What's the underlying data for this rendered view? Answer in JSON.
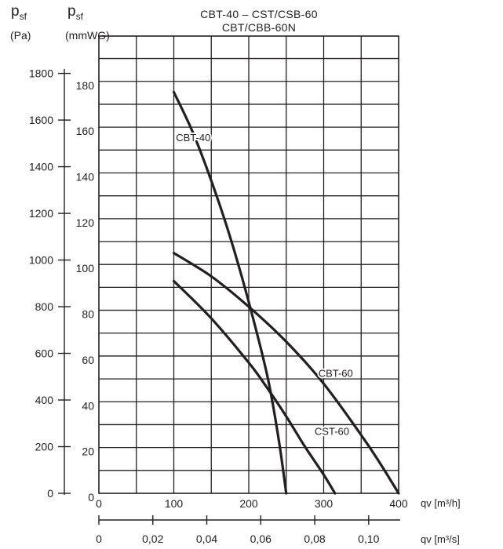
{
  "header": {
    "title_line1": "CBT-40 – CST/CSB-60",
    "title_line2": "CBT/CBB-60N",
    "left_symbol": "p",
    "left_sub": "sf",
    "left_unit": "(Pa)",
    "right_symbol": "p",
    "right_sub": "sf",
    "right_unit": "(mmWG)"
  },
  "chart_data": {
    "type": "line",
    "title": "CBT-40 – CST/CSB-60 CBT/CBB-60N",
    "xlabel": "qv [m³/h]",
    "xlabel2": "qv [m³/s]",
    "ylabel": "psf (Pa)",
    "ylabel2": "psf (mmWG)",
    "xlim": [
      0,
      400
    ],
    "ylim": [
      0,
      1960
    ],
    "ylim_mmwg": [
      0,
      196
    ],
    "grid": true,
    "x_ticks": [
      "0",
      "100",
      "200",
      "300",
      "400"
    ],
    "x2_ticks": [
      "0",
      "0,02",
      "0,04",
      "0,06",
      "0,08",
      "0,10"
    ],
    "y_ticks_pa": [
      "0",
      "200",
      "400",
      "600",
      "800",
      "1000",
      "1200",
      "1400",
      "1600",
      "1800"
    ],
    "y_ticks_mmwg": [
      "0",
      "20",
      "40",
      "60",
      "80",
      "100",
      "120",
      "140",
      "160",
      "180"
    ],
    "series": [
      {
        "name": "CBT-40",
        "x": [
          100,
          125,
          150,
          175,
          200,
          225,
          240,
          250
        ],
        "y": [
          1720,
          1550,
          1340,
          1100,
          820,
          500,
          230,
          0
        ]
      },
      {
        "name": "CBT-60",
        "x": [
          100,
          150,
          200,
          250,
          300,
          350,
          375,
          400
        ],
        "y": [
          1030,
          930,
          800,
          650,
          470,
          250,
          130,
          0
        ]
      },
      {
        "name": "CST-60",
        "x": [
          100,
          150,
          200,
          225,
          250,
          275,
          300,
          315
        ],
        "y": [
          910,
          750,
          560,
          450,
          330,
          200,
          80,
          0
        ]
      }
    ]
  }
}
